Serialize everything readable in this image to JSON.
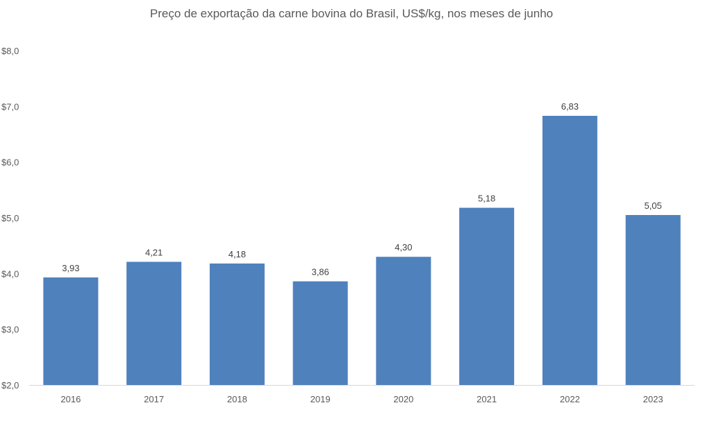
{
  "chart_data": {
    "type": "bar",
    "title": "Preço de exportação da carne bovina do Brasil, US$/kg, nos meses de junho",
    "categories": [
      "2016",
      "2017",
      "2018",
      "2019",
      "2020",
      "2021",
      "2022",
      "2023"
    ],
    "values": [
      3.93,
      4.21,
      4.18,
      3.86,
      4.3,
      5.18,
      6.83,
      5.05
    ],
    "value_labels": [
      "3,93",
      "4,21",
      "4,18",
      "3,86",
      "4,30",
      "5,18",
      "6,83",
      "5,05"
    ],
    "yticks": [
      2,
      3,
      4,
      5,
      6,
      7,
      8
    ],
    "ytick_labels": [
      "$2,0",
      "$3,0",
      "$4,0",
      "$5,0",
      "$6,0",
      "$7,0",
      "$8,0"
    ],
    "ylim": [
      2,
      8
    ],
    "xlabel": "",
    "ylabel": "",
    "grid": false,
    "legend": "none",
    "bar_color": "#4f81bd",
    "axis_color": "#d9d9d9"
  }
}
